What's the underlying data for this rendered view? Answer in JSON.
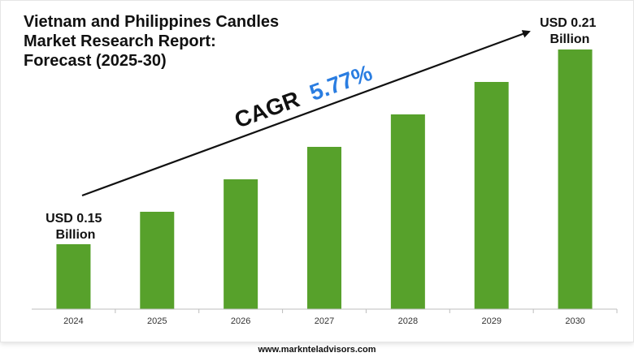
{
  "chart_data": {
    "type": "bar",
    "title": "Vietnam and Philippines Candles Market Research Report: Forecast (2025-30)",
    "categories": [
      "2024",
      "2025",
      "2026",
      "2027",
      "2028",
      "2029",
      "2030"
    ],
    "values": [
      0.15,
      0.16,
      0.17,
      0.18,
      0.19,
      0.2,
      0.21
    ],
    "start_label": [
      "USD 0.15",
      "Billion"
    ],
    "end_label": [
      "USD 0.21",
      "Billion"
    ],
    "cagr_prefix": "CAGR",
    "cagr_value": "5.77%",
    "colors": {
      "bar": "#57a12b",
      "cagr": "#2a7de1",
      "arrow": "#111111"
    },
    "grid": false
  },
  "footer": {
    "url": "www.marknteladvisors.com"
  }
}
